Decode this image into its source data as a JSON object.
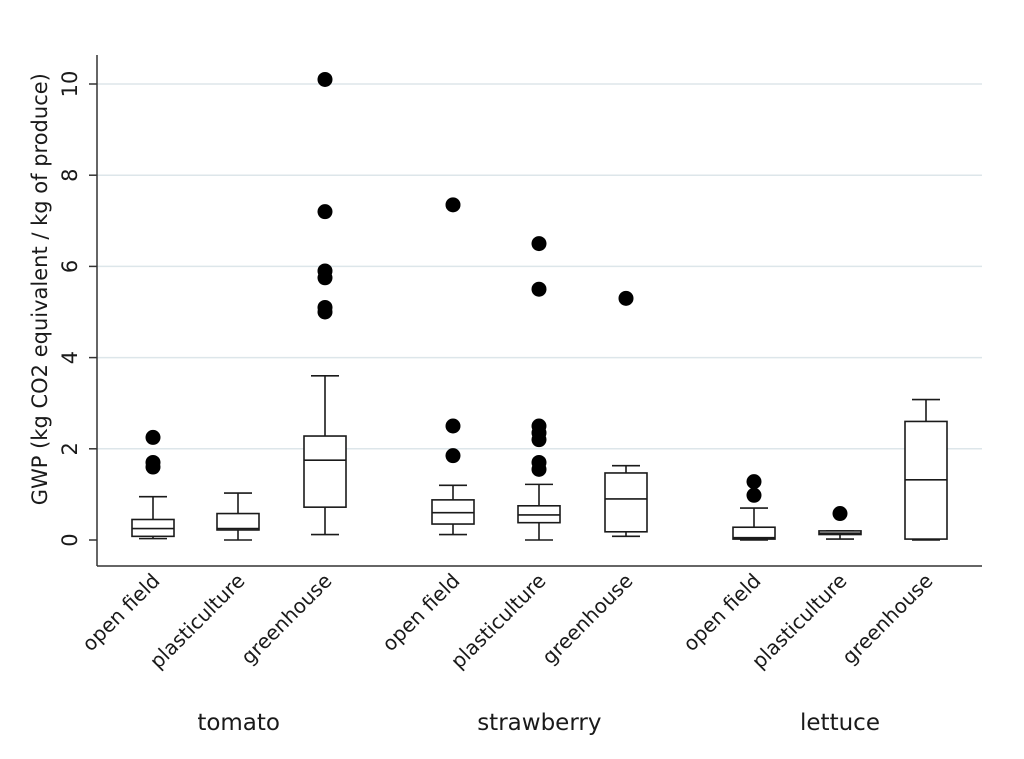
{
  "chart_data": {
    "type": "box",
    "ylabel": "GWP (kg CO2 equivalent / kg of produce)",
    "xlabel": "",
    "ylim": [
      0,
      10.5
    ],
    "yticks": [
      0,
      2,
      4,
      6,
      8,
      10
    ],
    "grid": "horizontal",
    "groups": [
      {
        "name": "tomato",
        "boxes": [
          {
            "category": "open field",
            "whisker_low": 0.03,
            "q1": 0.08,
            "median": 0.25,
            "q3": 0.45,
            "whisker_high": 0.95,
            "outliers": [
              1.6,
              1.7,
              2.25
            ]
          },
          {
            "category": "plasticulture",
            "whisker_low": 0.0,
            "q1": 0.22,
            "median": 0.25,
            "q3": 0.58,
            "whisker_high": 1.03,
            "outliers": []
          },
          {
            "category": "greenhouse",
            "whisker_low": 0.12,
            "q1": 0.72,
            "median": 1.75,
            "q3": 2.28,
            "whisker_high": 3.6,
            "outliers": [
              5.0,
              5.1,
              5.75,
              5.9,
              7.2,
              10.1
            ]
          }
        ]
      },
      {
        "name": "strawberry",
        "boxes": [
          {
            "category": "open field",
            "whisker_low": 0.12,
            "q1": 0.35,
            "median": 0.6,
            "q3": 0.88,
            "whisker_high": 1.2,
            "outliers": [
              1.85,
              2.5,
              7.35
            ]
          },
          {
            "category": "plasticulture",
            "whisker_low": 0.0,
            "q1": 0.38,
            "median": 0.55,
            "q3": 0.75,
            "whisker_high": 1.22,
            "outliers": [
              1.55,
              1.7,
              2.2,
              2.35,
              2.5,
              5.5,
              6.5
            ]
          },
          {
            "category": "greenhouse",
            "whisker_low": 0.08,
            "q1": 0.18,
            "median": 0.9,
            "q3": 1.47,
            "whisker_high": 1.63,
            "outliers": [
              5.3
            ]
          }
        ]
      },
      {
        "name": "lettuce",
        "boxes": [
          {
            "category": "open field",
            "whisker_low": 0.0,
            "q1": 0.02,
            "median": 0.05,
            "q3": 0.28,
            "whisker_high": 0.7,
            "outliers": [
              0.98,
              1.28
            ]
          },
          {
            "category": "plasticulture",
            "whisker_low": 0.02,
            "q1": 0.12,
            "median": 0.15,
            "q3": 0.2,
            "whisker_high": 0.2,
            "outliers": [
              0.58
            ]
          },
          {
            "category": "greenhouse",
            "whisker_low": 0.0,
            "q1": 0.02,
            "median": 1.32,
            "q3": 2.6,
            "whisker_high": 3.08,
            "outliers": []
          }
        ]
      }
    ]
  }
}
